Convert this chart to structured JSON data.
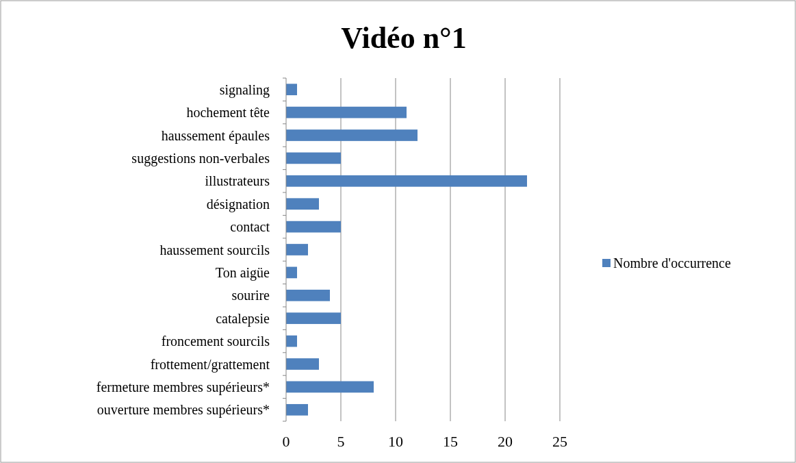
{
  "chart_data": {
    "type": "bar",
    "orientation": "horizontal",
    "title": "Vidéo n°1",
    "categories": [
      "signaling",
      "hochement tête",
      "haussement épaules",
      "suggestions non-verbales",
      "illustrateurs",
      "désignation",
      "contact",
      "haussement sourcils",
      "Ton aigüe",
      "sourire",
      "catalepsie",
      "froncement sourcils",
      "frottement/grattement",
      "fermeture membres supérieurs*",
      "ouverture membres supérieurs*"
    ],
    "series": [
      {
        "name": "Nombre d'occurrence",
        "color": "#4f81bd",
        "values": [
          1,
          11,
          12,
          5,
          22,
          3,
          5,
          2,
          1,
          4,
          5,
          1,
          3,
          8,
          2
        ]
      }
    ],
    "xlim": [
      0,
      25
    ],
    "xticks": [
      0,
      5,
      10,
      15,
      20,
      25
    ],
    "grid": "x",
    "legend": "right"
  }
}
